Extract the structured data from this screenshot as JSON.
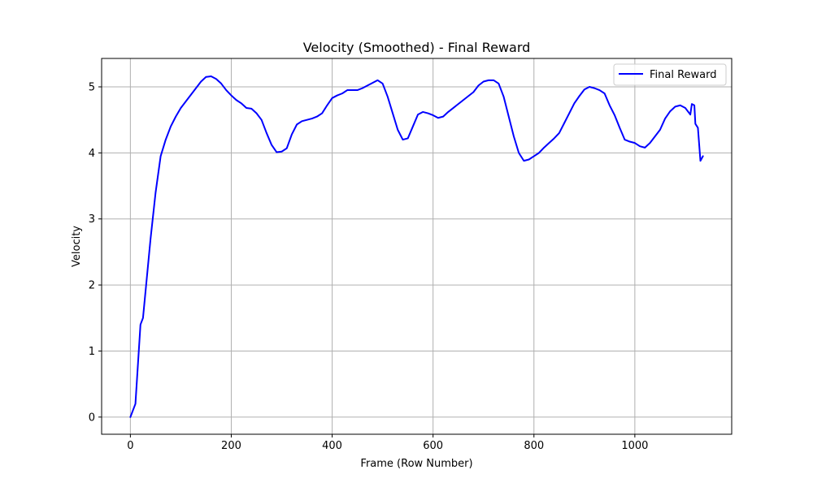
{
  "chart_data": {
    "type": "line",
    "title": "Velocity (Smoothed) - Final Reward",
    "xlabel": "Frame (Row Number)",
    "ylabel": "Velocity",
    "xlim": [
      -57,
      1192
    ],
    "ylim": [
      -0.26,
      5.43
    ],
    "xticks": [
      0,
      200,
      400,
      600,
      800,
      1000
    ],
    "yticks": [
      0,
      1,
      2,
      3,
      4,
      5
    ],
    "grid": true,
    "legend_position": "top-right",
    "colors": {
      "line": "#0000ff",
      "grid": "#b0b0b0",
      "axes": "#000000"
    },
    "series": [
      {
        "name": "Final Reward",
        "x": [
          0,
          10,
          20,
          25,
          30,
          40,
          50,
          60,
          70,
          80,
          90,
          100,
          110,
          120,
          130,
          140,
          150,
          160,
          170,
          180,
          190,
          200,
          210,
          220,
          230,
          240,
          250,
          260,
          270,
          280,
          290,
          300,
          310,
          320,
          330,
          340,
          350,
          360,
          370,
          380,
          390,
          400,
          410,
          420,
          430,
          440,
          450,
          460,
          470,
          480,
          490,
          500,
          510,
          520,
          530,
          540,
          550,
          560,
          570,
          580,
          590,
          600,
          610,
          620,
          630,
          640,
          650,
          660,
          670,
          680,
          690,
          700,
          710,
          720,
          730,
          740,
          750,
          760,
          770,
          780,
          790,
          800,
          810,
          820,
          830,
          840,
          850,
          860,
          870,
          880,
          890,
          900,
          910,
          920,
          930,
          940,
          950,
          960,
          970,
          980,
          990,
          1000,
          1010,
          1020,
          1030,
          1040,
          1050,
          1060,
          1070,
          1080,
          1090,
          1100,
          1110,
          1113,
          1118,
          1120,
          1125,
          1130,
          1135
        ],
        "y": [
          0.0,
          0.2,
          1.4,
          1.5,
          1.9,
          2.7,
          3.4,
          3.95,
          4.2,
          4.4,
          4.55,
          4.68,
          4.78,
          4.88,
          4.98,
          5.08,
          5.15,
          5.16,
          5.12,
          5.05,
          4.95,
          4.87,
          4.8,
          4.75,
          4.68,
          4.67,
          4.6,
          4.5,
          4.3,
          4.12,
          4.01,
          4.02,
          4.07,
          4.28,
          4.43,
          4.48,
          4.5,
          4.52,
          4.55,
          4.6,
          4.72,
          4.83,
          4.87,
          4.9,
          4.95,
          4.95,
          4.95,
          4.98,
          5.02,
          5.06,
          5.1,
          5.05,
          4.85,
          4.6,
          4.35,
          4.2,
          4.22,
          4.4,
          4.58,
          4.62,
          4.6,
          4.57,
          4.53,
          4.55,
          4.62,
          4.68,
          4.74,
          4.8,
          4.86,
          4.92,
          5.02,
          5.08,
          5.1,
          5.1,
          5.05,
          4.85,
          4.55,
          4.25,
          4.0,
          3.88,
          3.9,
          3.95,
          4.0,
          4.08,
          4.15,
          4.22,
          4.3,
          4.45,
          4.6,
          4.75,
          4.86,
          4.96,
          5.0,
          4.98,
          4.95,
          4.9,
          4.72,
          4.57,
          4.38,
          4.2,
          4.17,
          4.15,
          4.1,
          4.08,
          4.15,
          4.25,
          4.35,
          4.52,
          4.63,
          4.7,
          4.72,
          4.68,
          4.58,
          4.74,
          4.72,
          4.44,
          4.38,
          3.88,
          3.95
        ]
      }
    ]
  }
}
